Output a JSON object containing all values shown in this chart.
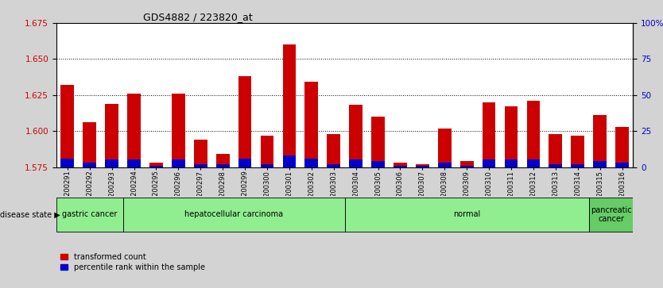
{
  "title": "GDS4882 / 223820_at",
  "samples": [
    "GSM1200291",
    "GSM1200292",
    "GSM1200293",
    "GSM1200294",
    "GSM1200295",
    "GSM1200296",
    "GSM1200297",
    "GSM1200298",
    "GSM1200299",
    "GSM1200300",
    "GSM1200301",
    "GSM1200302",
    "GSM1200303",
    "GSM1200304",
    "GSM1200305",
    "GSM1200306",
    "GSM1200307",
    "GSM1200308",
    "GSM1200309",
    "GSM1200310",
    "GSM1200311",
    "GSM1200312",
    "GSM1200313",
    "GSM1200314",
    "GSM1200315",
    "GSM1200316"
  ],
  "transformed_count": [
    1.632,
    1.606,
    1.619,
    1.626,
    1.578,
    1.626,
    1.594,
    1.584,
    1.638,
    1.597,
    1.66,
    1.634,
    1.598,
    1.618,
    1.61,
    1.578,
    1.577,
    1.602,
    1.579,
    1.62,
    1.617,
    1.621,
    1.598,
    1.597,
    1.611,
    1.603
  ],
  "percentile_rank": [
    6,
    3,
    5,
    5,
    1,
    5,
    2,
    2,
    6,
    2,
    8,
    6,
    2,
    5,
    4,
    1,
    1,
    3,
    1,
    5,
    5,
    5,
    2,
    2,
    4,
    3
  ],
  "disease_groups": [
    {
      "label": "gastric cancer",
      "start": 0,
      "end": 3,
      "color": "#90EE90"
    },
    {
      "label": "hepatocellular carcinoma",
      "start": 3,
      "end": 13,
      "color": "#90EE90"
    },
    {
      "label": "normal",
      "start": 13,
      "end": 24,
      "color": "#90EE90"
    },
    {
      "label": "pancreatic\ncancer",
      "start": 24,
      "end": 26,
      "color": "#66CC66"
    }
  ],
  "ylim_left": [
    1.575,
    1.675
  ],
  "ylim_right": [
    0,
    100
  ],
  "yticks_left": [
    1.575,
    1.6,
    1.625,
    1.65,
    1.675
  ],
  "yticks_right": [
    0,
    25,
    50,
    75,
    100
  ],
  "ytick_labels_right": [
    "0",
    "25",
    "50",
    "75",
    "100%"
  ],
  "bar_color": "#CC0000",
  "percentile_color": "#0000CC",
  "background_color": "#D3D3D3",
  "plot_bg_color": "#FFFFFF",
  "grid_color": "#000000",
  "left_axis_color": "#CC0000",
  "right_axis_color": "#0000CC",
  "gridlines_at": [
    1.6,
    1.625,
    1.65
  ]
}
